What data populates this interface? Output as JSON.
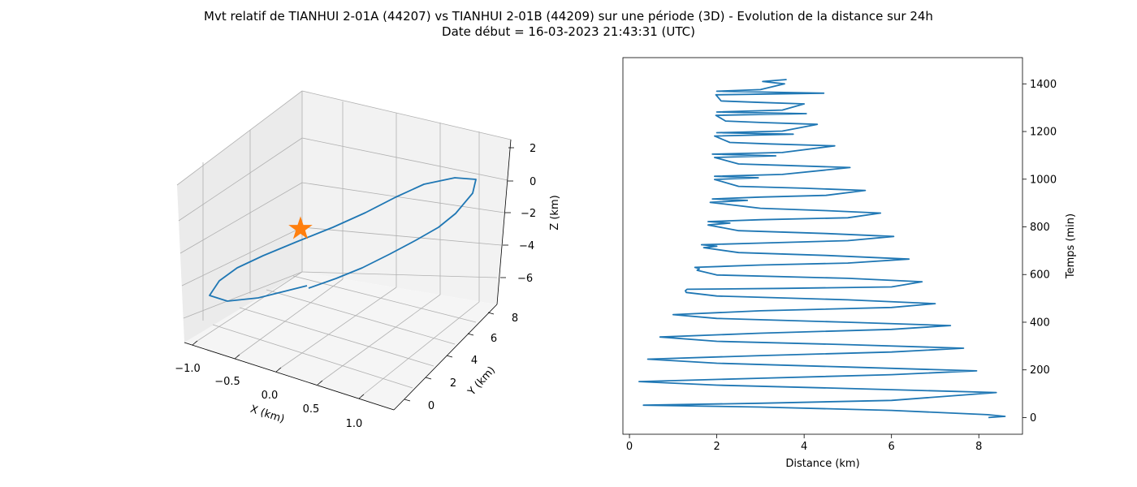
{
  "title_line1": "Mvt relatif de TIANHUI 2-01A (44207) vs TIANHUI 2-01B (44209) sur une période (3D) - Evolution de la distance sur 24h",
  "title_line2": "Date début = 16-03-2023 21:43:31 (UTC)",
  "colors": {
    "line": "#1f77b4",
    "marker": "#ff7f0e",
    "grid": "#b0b0b0",
    "pane": "#f2f2f2",
    "pane_side": "#ebebeb"
  },
  "chart_data": [
    {
      "type": "line3d",
      "xlabel": "X (km)",
      "ylabel": "Y (km)",
      "zlabel": "Z (km)",
      "xticks": [
        "−1.0",
        "−0.5",
        "0.0",
        "0.5",
        "1.0"
      ],
      "yticks": [
        "0",
        "2",
        "4",
        "6",
        "8"
      ],
      "zticks": [
        "2",
        "0",
        "−2",
        "−4",
        "−6"
      ],
      "xlim": [
        -1.2,
        1.3
      ],
      "ylim": [
        -1.0,
        8.5
      ],
      "zlim": [
        -6.8,
        2.5
      ],
      "marker": {
        "symbol": "star",
        "note": "starting point"
      },
      "trajectory_summary": "closed elongated loop spanning X about -1.0 to 1.0 km, Y about 0 to 8 km, Z about -6 to 0 km"
    },
    {
      "type": "line",
      "xlabel": "Distance (km)",
      "ylabel": "Temps (min)",
      "xlim": [
        -0.15,
        9.0
      ],
      "ylim": [
        -70,
        1510
      ],
      "xticks": [
        0,
        2,
        4,
        6,
        8
      ],
      "yticks": [
        0,
        200,
        400,
        600,
        800,
        1000,
        1200,
        1400
      ],
      "yaxis_side": "right",
      "series": [
        {
          "points": [
            [
              8.22,
              0
            ],
            [
              8.6,
              5
            ],
            [
              8.2,
              12
            ],
            [
              6.0,
              30
            ],
            [
              3.0,
              44
            ],
            [
              0.32,
              52
            ],
            [
              3.0,
              60
            ],
            [
              6.0,
              72
            ],
            [
              8.4,
              105
            ],
            [
              5.0,
              122
            ],
            [
              2.0,
              136
            ],
            [
              0.22,
              151
            ],
            [
              3.0,
              165
            ],
            [
              6.0,
              180
            ],
            [
              7.95,
              196
            ],
            [
              5.0,
              212
            ],
            [
              2.0,
              228
            ],
            [
              0.42,
              245
            ],
            [
              3.0,
              260
            ],
            [
              6.0,
              275
            ],
            [
              7.65,
              291
            ],
            [
              5.0,
              306
            ],
            [
              2.0,
              320
            ],
            [
              0.7,
              338
            ],
            [
              3.0,
              354
            ],
            [
              6.0,
              370
            ],
            [
              7.35,
              386
            ],
            [
              5.0,
              400
            ],
            [
              2.0,
              416
            ],
            [
              1.0,
              432
            ],
            [
              3.0,
              448
            ],
            [
              6.0,
              462
            ],
            [
              7.0,
              478
            ],
            [
              5.0,
              494
            ],
            [
              2.0,
              510
            ],
            [
              1.3,
              525
            ],
            [
              1.28,
              532
            ],
            [
              1.32,
              538
            ],
            [
              3.5,
              542
            ],
            [
              6.0,
              548
            ],
            [
              6.7,
              570
            ],
            [
              5.0,
              584
            ],
            [
              2.0,
              598
            ],
            [
              1.55,
              618
            ],
            [
              1.6,
              624
            ],
            [
              1.5,
              630
            ],
            [
              3.0,
              640
            ],
            [
              5.0,
              648
            ],
            [
              6.4,
              665
            ],
            [
              4.5,
              680
            ],
            [
              2.5,
              692
            ],
            [
              1.7,
              713
            ],
            [
              2.0,
              719
            ],
            [
              1.65,
              725
            ],
            [
              3.0,
              732
            ],
            [
              5.0,
              742
            ],
            [
              6.05,
              760
            ],
            [
              4.5,
              772
            ],
            [
              2.5,
              784
            ],
            [
              1.8,
              808
            ],
            [
              2.3,
              816
            ],
            [
              1.8,
              822
            ],
            [
              3.0,
              830
            ],
            [
              5.0,
              838
            ],
            [
              5.75,
              858
            ],
            [
              4.5,
              868
            ],
            [
              3.0,
              878
            ],
            [
              1.85,
              903
            ],
            [
              2.7,
              911
            ],
            [
              1.9,
              917
            ],
            [
              3.0,
              925
            ],
            [
              4.5,
              932
            ],
            [
              5.4,
              953
            ],
            [
              4.0,
              962
            ],
            [
              2.5,
              970
            ],
            [
              1.95,
              999
            ],
            [
              2.95,
              1006
            ],
            [
              1.95,
              1012
            ],
            [
              3.5,
              1020
            ],
            [
              5.05,
              1049
            ],
            [
              3.5,
              1058
            ],
            [
              2.5,
              1064
            ],
            [
              1.95,
              1091
            ],
            [
              3.35,
              1098
            ],
            [
              1.9,
              1105
            ],
            [
              3.5,
              1112
            ],
            [
              4.7,
              1140
            ],
            [
              3.2,
              1148
            ],
            [
              2.3,
              1154
            ],
            [
              1.95,
              1181
            ],
            [
              3.75,
              1189
            ],
            [
              2.0,
              1195
            ],
            [
              3.5,
              1202
            ],
            [
              4.3,
              1230
            ],
            [
              3.0,
              1238
            ],
            [
              2.2,
              1244
            ],
            [
              1.98,
              1268
            ],
            [
              4.05,
              1275
            ],
            [
              2.0,
              1282
            ],
            [
              3.5,
              1290
            ],
            [
              4.0,
              1316
            ],
            [
              3.0,
              1322
            ],
            [
              2.1,
              1328
            ],
            [
              1.98,
              1354
            ],
            [
              4.45,
              1361
            ],
            [
              2.0,
              1369
            ],
            [
              3.0,
              1376
            ],
            [
              3.55,
              1400
            ],
            [
              3.05,
              1410
            ],
            [
              3.6,
              1418
            ]
          ]
        }
      ]
    }
  ]
}
